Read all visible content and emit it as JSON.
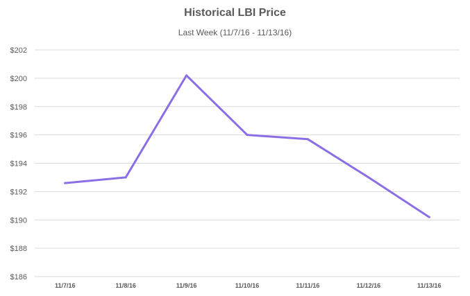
{
  "chart_data": {
    "type": "line",
    "title": "Historical LBI Price",
    "subtitle": "Last Week (11/7/16 - 11/13/16)",
    "xlabel": "",
    "ylabel": "",
    "categories": [
      "11/7/16",
      "11/8/16",
      "11/9/16",
      "11/10/16",
      "11/11/16",
      "11/12/16",
      "11/13/16"
    ],
    "series": [
      {
        "values": [
          192.6,
          193.0,
          200.2,
          196.0,
          195.7,
          193.0,
          190.2
        ]
      }
    ],
    "ylim": [
      186,
      202
    ],
    "y_ticks": [
      {
        "value": 202,
        "label": "$202"
      },
      {
        "value": 200,
        "label": "$200"
      },
      {
        "value": 198,
        "label": "$198"
      },
      {
        "value": 196,
        "label": "$196"
      },
      {
        "value": 194,
        "label": "$194"
      },
      {
        "value": 192,
        "label": "$192"
      },
      {
        "value": 190,
        "label": "$190"
      },
      {
        "value": 188,
        "label": "$188"
      },
      {
        "value": 186,
        "label": "$186"
      }
    ],
    "grid": true,
    "legend": "none",
    "colors": {
      "line": "#8b6ee6",
      "grid": "#d9d9d9",
      "text": "#595959"
    }
  }
}
